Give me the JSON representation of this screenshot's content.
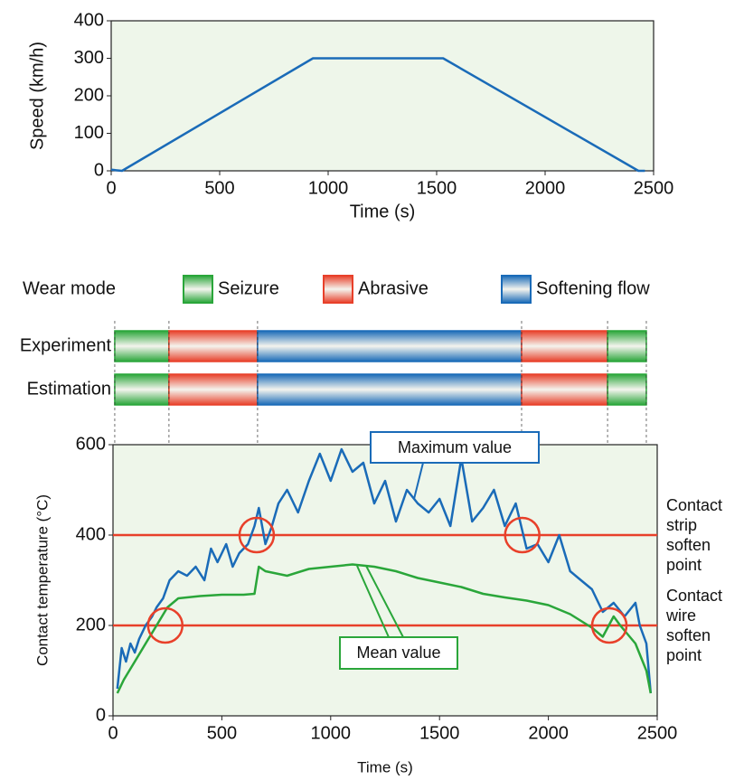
{
  "chart_data": [
    {
      "type": "line",
      "x_label": "Time (s)",
      "y_label": "Speed (km/h)",
      "x": [
        0,
        50,
        930,
        1530,
        2430,
        2460
      ],
      "values": [
        3,
        0,
        300,
        300,
        0,
        0
      ],
      "color": "#1a6bb8",
      "xlim": [
        0,
        2500
      ],
      "ylim": [
        0,
        400
      ],
      "xticks": [
        0,
        500,
        1000,
        1500,
        2000,
        2500
      ],
      "yticks": [
        0,
        100,
        200,
        300,
        400
      ]
    },
    {
      "type": "timeline",
      "title": "Wear mode",
      "modes": [
        {
          "name": "Seizure",
          "color": "#2aa63a"
        },
        {
          "name": "Abrasive",
          "color": "#e8402a"
        },
        {
          "name": "Softening flow",
          "color": "#1a6bb8"
        }
      ],
      "rows": [
        {
          "label": "Experiment",
          "segments": [
            {
              "mode": 0,
              "start": 8,
              "end": 257
            },
            {
              "mode": 1,
              "start": 257,
              "end": 664
            },
            {
              "mode": 2,
              "start": 664,
              "end": 1877
            },
            {
              "mode": 1,
              "start": 1877,
              "end": 2272
            },
            {
              "mode": 0,
              "start": 2272,
              "end": 2450
            }
          ]
        },
        {
          "label": "Estimation",
          "segments": [
            {
              "mode": 0,
              "start": 8,
              "end": 257
            },
            {
              "mode": 1,
              "start": 257,
              "end": 664
            },
            {
              "mode": 2,
              "start": 664,
              "end": 1877
            },
            {
              "mode": 1,
              "start": 1877,
              "end": 2272
            },
            {
              "mode": 0,
              "start": 2272,
              "end": 2450
            }
          ]
        }
      ],
      "xlim": [
        0,
        2500
      ]
    },
    {
      "type": "line",
      "x_label": "Time (s)",
      "y_label": "Contact temperature (°C)",
      "series": [
        {
          "name": "Maximum value",
          "color": "#1a6bb8",
          "x": [
            20,
            40,
            60,
            80,
            100,
            120,
            150,
            180,
            200,
            230,
            260,
            300,
            340,
            380,
            420,
            450,
            480,
            520,
            550,
            580,
            620,
            650,
            670,
            700,
            730,
            760,
            800,
            850,
            900,
            950,
            1000,
            1050,
            1100,
            1150,
            1200,
            1250,
            1300,
            1350,
            1400,
            1450,
            1500,
            1550,
            1600,
            1650,
            1700,
            1750,
            1800,
            1850,
            1900,
            1950,
            2000,
            2050,
            2100,
            2150,
            2200,
            2250,
            2300,
            2350,
            2400,
            2420,
            2450,
            2470
          ],
          "values": [
            60,
            150,
            120,
            160,
            140,
            170,
            200,
            220,
            240,
            260,
            300,
            320,
            310,
            330,
            300,
            370,
            340,
            380,
            330,
            360,
            380,
            420,
            460,
            380,
            420,
            470,
            500,
            450,
            520,
            580,
            520,
            590,
            540,
            560,
            470,
            520,
            430,
            500,
            470,
            450,
            480,
            420,
            570,
            430,
            460,
            500,
            420,
            470,
            370,
            380,
            340,
            400,
            320,
            300,
            280,
            230,
            250,
            220,
            250,
            200,
            160,
            50
          ]
        },
        {
          "name": "Mean value",
          "color": "#2aa63a",
          "x": [
            20,
            50,
            100,
            150,
            200,
            250,
            300,
            400,
            500,
            600,
            650,
            670,
            700,
            800,
            900,
            1000,
            1100,
            1200,
            1300,
            1400,
            1500,
            1600,
            1700,
            1800,
            1900,
            2000,
            2100,
            2200,
            2250,
            2300,
            2330,
            2400,
            2450,
            2470
          ],
          "values": [
            50,
            80,
            120,
            160,
            200,
            240,
            260,
            265,
            268,
            268,
            270,
            330,
            320,
            310,
            325,
            330,
            335,
            330,
            320,
            305,
            295,
            285,
            270,
            262,
            255,
            245,
            225,
            195,
            175,
            220,
            200,
            160,
            100,
            50
          ]
        }
      ],
      "hlines": [
        {
          "value": 400,
          "color": "#e8402a",
          "label": [
            "Contact",
            "strip",
            "soften",
            "point"
          ]
        },
        {
          "value": 200,
          "color": "#e8402a",
          "label": [
            "Contact",
            "wire",
            "soften",
            "point"
          ]
        }
      ],
      "xlim": [
        0,
        2500
      ],
      "ylim": [
        0,
        600
      ],
      "xticks": [
        0,
        500,
        1000,
        1500,
        2000,
        2500
      ],
      "yticks": [
        0,
        200,
        400,
        600
      ]
    }
  ]
}
